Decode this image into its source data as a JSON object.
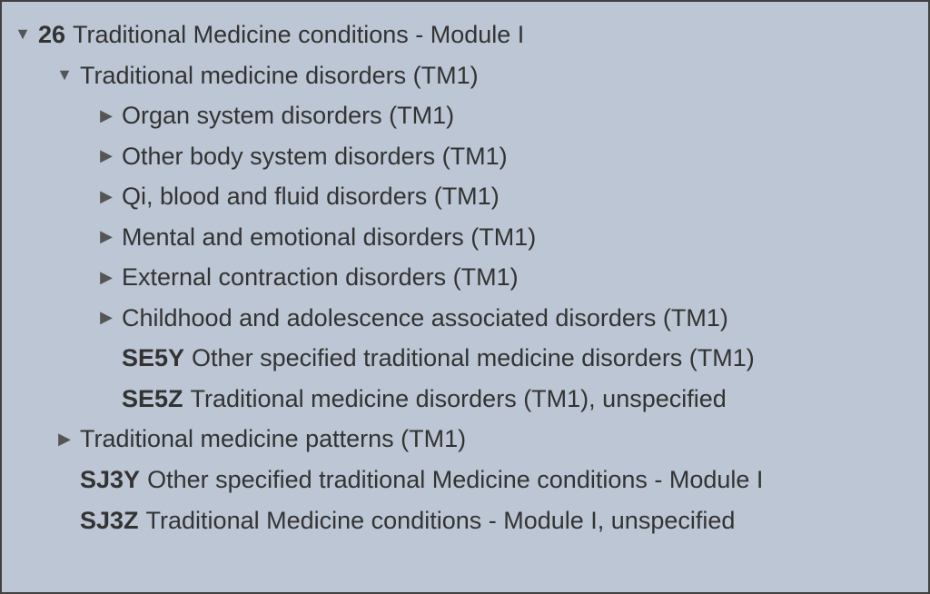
{
  "glyphs": {
    "expanded": "▼",
    "collapsed": "▶"
  },
  "tree": [
    {
      "indent": 0,
      "toggle": "expanded",
      "code": "26",
      "label": "Traditional Medicine conditions - Module I"
    },
    {
      "indent": 1,
      "toggle": "expanded",
      "code": "",
      "label": "Traditional medicine disorders (TM1)"
    },
    {
      "indent": 2,
      "toggle": "collapsed",
      "code": "",
      "label": "Organ system disorders (TM1)"
    },
    {
      "indent": 2,
      "toggle": "collapsed",
      "code": "",
      "label": "Other body system disorders (TM1)"
    },
    {
      "indent": 2,
      "toggle": "collapsed",
      "code": "",
      "label": "Qi, blood and fluid disorders (TM1)"
    },
    {
      "indent": 2,
      "toggle": "collapsed",
      "code": "",
      "label": "Mental and emotional disorders (TM1)"
    },
    {
      "indent": 2,
      "toggle": "collapsed",
      "code": "",
      "label": "External contraction disorders (TM1)"
    },
    {
      "indent": 2,
      "toggle": "collapsed",
      "code": "",
      "label": "Childhood and adolescence associated disorders (TM1)"
    },
    {
      "indent": 2,
      "toggle": "none",
      "code": "SE5Y",
      "label": "Other specified traditional medicine disorders (TM1)"
    },
    {
      "indent": 2,
      "toggle": "none",
      "code": "SE5Z",
      "label": "Traditional medicine disorders (TM1), unspecified"
    },
    {
      "indent": 1,
      "toggle": "collapsed",
      "code": "",
      "label": "Traditional medicine patterns (TM1)"
    },
    {
      "indent": 1,
      "toggle": "none",
      "code": "SJ3Y",
      "label": "Other specified traditional Medicine conditions - Module I"
    },
    {
      "indent": 1,
      "toggle": "none",
      "code": "SJ3Z",
      "label": "Traditional Medicine conditions - Module I, unspecified"
    }
  ]
}
